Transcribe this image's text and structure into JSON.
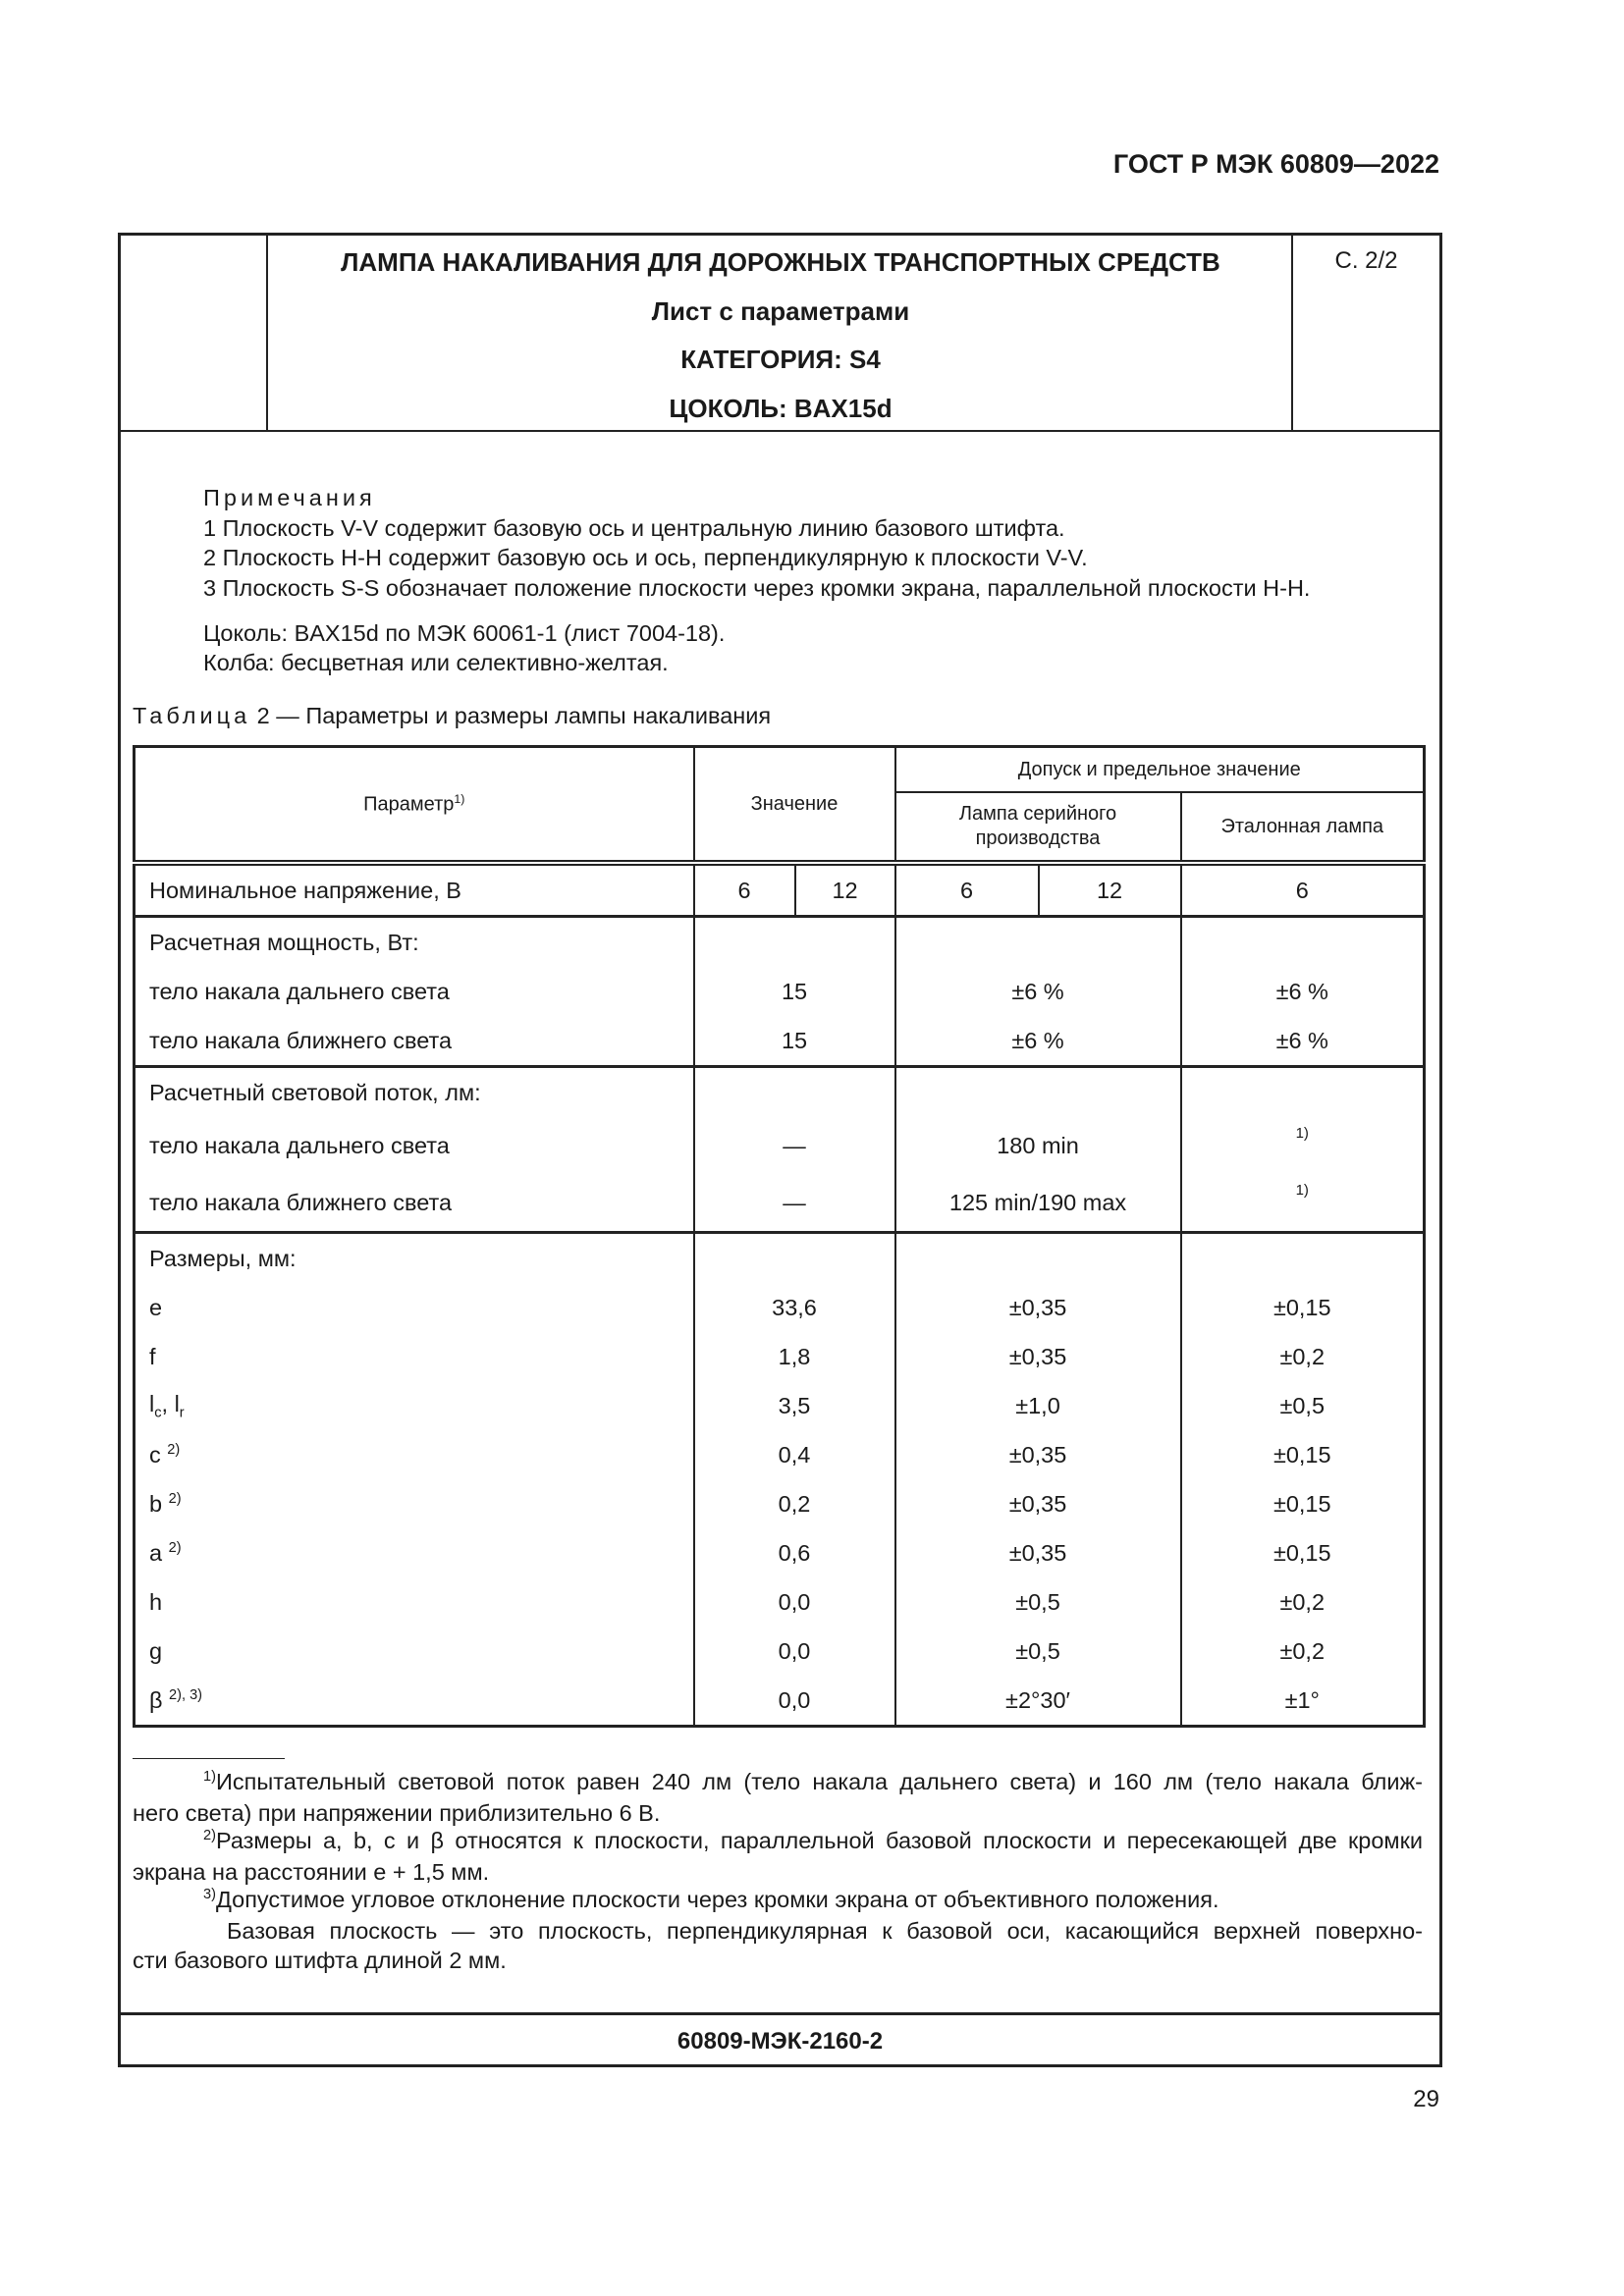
{
  "document_code": "ГОСТ Р МЭК 60809—2022",
  "header": {
    "title": "ЛАМПА НАКАЛИВАНИЯ ДЛЯ ДОРОЖНЫХ ТРАНСПОРТНЫХ СРЕДСТВ",
    "subtitle": "Лист с параметрами",
    "category": "КАТЕГОРИЯ: S4",
    "cap": "ЦОКОЛЬ: BAX15d",
    "sheet": "С. 2/2"
  },
  "notes": {
    "heading": "Примечания",
    "items": [
      "1 Плоскость V-V содержит базовую ось и центральную линию базового штифта.",
      "2 Плоскость H-H содержит базовую ось и ось, перпендикулярную к плоскости V-V.",
      "3 Плоскость S-S обозначает положение плоскости через кромки экрана, параллельной плоскости H-H."
    ],
    "cap_line": "Цоколь: BAX15d по МЭК 60061-1 (лист 7004-18).",
    "bulb_line": "Колба: бесцветная или селективно-желтая."
  },
  "table": {
    "caption_label": "Таблица",
    "caption_text": " 2 — Параметры и размеры лампы накаливания",
    "headers": {
      "parameter": "Параметр",
      "parameter_sup": "1)",
      "value": "Значение",
      "tolerance": "Допуск и предельное значение",
      "serial": "Лампа серийного производства",
      "reference": "Эталонная лампа"
    },
    "voltage": {
      "label": "Номинальное напряжение, В",
      "v1": "6",
      "v2": "12",
      "s1": "6",
      "s2": "12",
      "r": "6"
    },
    "power": {
      "label": "Расчетная мощность, Вт:",
      "rows": [
        {
          "label": "тело накала дальнего света",
          "value": "15",
          "serial": "±6 %",
          "reference": "±6 %"
        },
        {
          "label": "тело накала ближнего света",
          "value": "15",
          "serial": "±6 %",
          "reference": "±6 %"
        }
      ]
    },
    "flux": {
      "label": "Расчетный световой поток, лм:",
      "rows": [
        {
          "label": "тело накала дальнего света",
          "value": "—",
          "serial": "180 min",
          "reference": "1)"
        },
        {
          "label": "тело накала ближнего света",
          "value": "—",
          "serial": "125 min/190 max",
          "reference": "1)"
        }
      ]
    },
    "dimensions": {
      "label": "Размеры, мм:",
      "rows": [
        {
          "label": "e",
          "sup": "",
          "value": "33,6",
          "serial": "±0,35",
          "reference": "±0,15"
        },
        {
          "label": "f",
          "sup": "",
          "value": "1,8",
          "serial": "±0,35",
          "reference": "±0,2"
        },
        {
          "label": "l",
          "sub1": "c",
          "label2": ", l",
          "sub2": "r",
          "value": "3,5",
          "serial": "±1,0",
          "reference": "±0,5"
        },
        {
          "label": "c ",
          "sup": "2)",
          "value": "0,4",
          "serial": "±0,35",
          "reference": "±0,15"
        },
        {
          "label": "b ",
          "sup": "2)",
          "value": "0,2",
          "serial": "±0,35",
          "reference": "±0,15"
        },
        {
          "label": "a ",
          "sup": "2)",
          "value": "0,6",
          "serial": "±0,35",
          "reference": "±0,15"
        },
        {
          "label": "h",
          "sup": "",
          "value": "0,0",
          "serial": "±0,5",
          "reference": "±0,2"
        },
        {
          "label": "g",
          "sup": "",
          "value": "0,0",
          "serial": "±0,5",
          "reference": "±0,2"
        },
        {
          "label": "β ",
          "sup": "2), 3)",
          "value": "0,0",
          "serial": "±2°30′",
          "reference": "±1°"
        }
      ]
    }
  },
  "footnotes": {
    "f1_mark": "1)",
    "f1_line1": "Испытательный световой поток равен 240 лм (тело накала дальнего света) и 160 лм (тело накала ближ-",
    "f1_line2": "него света) при напряжении приблизительно 6 В.",
    "f2_mark": "2)",
    "f2_line1": "Размеры a, b, c и β относятся к плоскости, параллельной базовой плоскости и пересекающей две кромки",
    "f2_line2": "экрана на расстоянии e + 1,5 мм.",
    "f3_mark": "3)",
    "f3_line1": "Допустимое угловое отклонение плоскости через кромки экрана от объективного положения.",
    "base_line1": "Базовая плоскость — это плоскость, перпендикулярная к базовой оси, касающийся верхней поверхно-",
    "base_line2": "сти базового штифта длиной 2 мм."
  },
  "footer_code": "60809-МЭК-2160-2",
  "page_number": "29"
}
